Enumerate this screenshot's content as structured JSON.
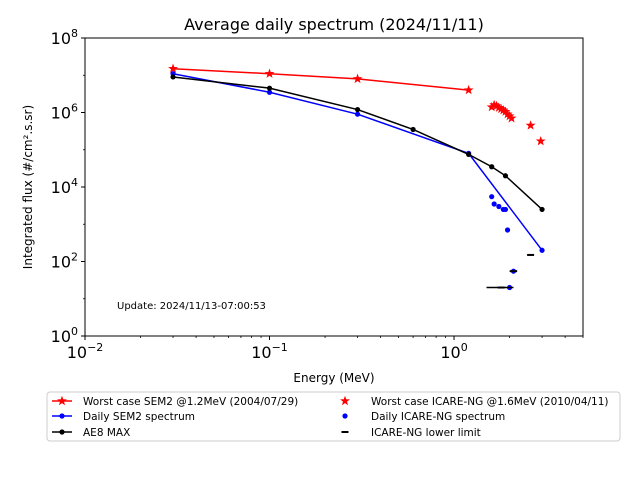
{
  "chart_data": {
    "type": "line",
    "title": "Average daily spectrum (2024/11/11)",
    "xlabel": "Energy (MeV)",
    "ylabel": "Integrated flux (#/cm².s.sr)",
    "xscale": "log",
    "yscale": "log",
    "xlim": [
      0.01,
      5
    ],
    "ylim": [
      1,
      100000000
    ],
    "x_ticks": [
      {
        "value": 0.01,
        "base": "10",
        "exp": "−2"
      },
      {
        "value": 0.1,
        "base": "10",
        "exp": "−1"
      },
      {
        "value": 1,
        "base": "10",
        "exp": "0"
      }
    ],
    "y_ticks": [
      {
        "value": 1,
        "base": "10",
        "exp": "0"
      },
      {
        "value": 100,
        "base": "10",
        "exp": "2"
      },
      {
        "value": 10000,
        "base": "10",
        "exp": "4"
      },
      {
        "value": 1000000,
        "base": "10",
        "exp": "6"
      },
      {
        "value": 100000000,
        "base": "10",
        "exp": "8"
      }
    ],
    "annotation": "Update: 2024/11/13-07:00:53",
    "legend_position": "below plot, two columns",
    "series": [
      {
        "name": "Worst case SEM2 @1.2MeV (2004/07/29)",
        "style": "line",
        "marker": "star",
        "color": "#ff0000",
        "x": [
          0.03,
          0.1,
          0.3,
          1.2
        ],
        "y": [
          15000000,
          11000000,
          8000000,
          4000000
        ]
      },
      {
        "name": "Daily SEM2 spectrum",
        "style": "line",
        "marker": "dot",
        "color": "#0000ff",
        "x": [
          0.03,
          0.1,
          0.3,
          1.2,
          3.0
        ],
        "y": [
          11000000,
          3500000,
          900000,
          80000,
          200
        ]
      },
      {
        "name": "AE8 MAX",
        "style": "line",
        "marker": "dot",
        "color": "#000000",
        "x": [
          0.03,
          0.1,
          0.3,
          0.6,
          1.2,
          1.6,
          1.9,
          3.0
        ],
        "y": [
          9000000,
          4500000,
          1200000,
          350000,
          75000,
          35000,
          20000,
          2500
        ]
      },
      {
        "name": "Worst case ICARE-NG @1.6MeV (2010/04/11)",
        "style": "points",
        "marker": "star",
        "color": "#ff0000",
        "x": [
          1.6,
          1.65,
          1.7,
          1.75,
          1.8,
          1.85,
          1.9,
          1.95,
          2.0,
          2.05,
          2.6,
          2.95
        ],
        "y": [
          1400000,
          1600000,
          1500000,
          1350000,
          1250000,
          1150000,
          1050000,
          900000,
          800000,
          700000,
          450000,
          170000
        ]
      },
      {
        "name": "Daily ICARE-NG spectrum",
        "style": "points",
        "marker": "dot",
        "color": "#0000ff",
        "x": [
          1.6,
          1.65,
          1.75,
          1.85,
          1.9,
          1.95,
          2.0,
          2.1
        ],
        "y": [
          5500,
          3500,
          3000,
          2500,
          2500,
          700,
          20,
          55
        ]
      },
      {
        "name": "ICARE-NG lower limit",
        "style": "lower-limit",
        "marker": "dash",
        "color": "#000000",
        "bars": [
          {
            "x": 2.1,
            "y": 55,
            "xmin": 2.0,
            "xmax": 2.2
          },
          {
            "x": 2.6,
            "y": 150,
            "xmin": 2.5,
            "xmax": 2.7
          },
          {
            "x": 1.8,
            "y": 20,
            "xmin": 1.5,
            "xmax": 2.1
          }
        ]
      }
    ],
    "legend": [
      {
        "series": 0,
        "line": true,
        "marker": "star",
        "color": "#ff0000",
        "label": "Worst case SEM2 @1.2MeV (2004/07/29)"
      },
      {
        "series": 3,
        "line": false,
        "marker": "star",
        "color": "#ff0000",
        "label": "Worst case ICARE-NG @1.6MeV (2010/04/11)"
      },
      {
        "series": 1,
        "line": true,
        "marker": "dot",
        "color": "#0000ff",
        "label": "Daily SEM2 spectrum"
      },
      {
        "series": 4,
        "line": false,
        "marker": "dot",
        "color": "#0000ff",
        "label": "Daily ICARE-NG spectrum"
      },
      {
        "series": 2,
        "line": true,
        "marker": "dot",
        "color": "#000000",
        "label": "AE8 MAX"
      },
      {
        "series": 5,
        "line": false,
        "marker": "dash",
        "color": "#000000",
        "label": "ICARE-NG lower limit"
      }
    ]
  }
}
